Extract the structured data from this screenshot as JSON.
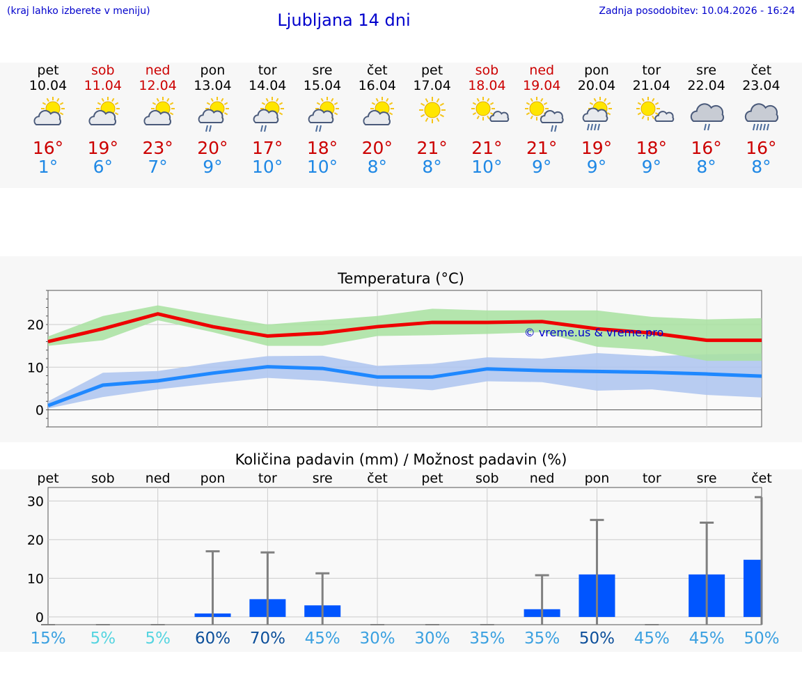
{
  "header": {
    "note": "(kraj lahko izberete v meniju)",
    "title": "Ljubljana 14 dni",
    "updated": "Zadnja posodobitev: 10.04.2026 - 16:24"
  },
  "days": [
    {
      "name": "pet",
      "date": "10.04",
      "weekend": false,
      "icon": "sun-cloud-icon",
      "tmax": "16°",
      "tmin": "1°"
    },
    {
      "name": "sob",
      "date": "11.04",
      "weekend": true,
      "icon": "sun-cloud-icon",
      "tmax": "19°",
      "tmin": "6°"
    },
    {
      "name": "ned",
      "date": "12.04",
      "weekend": true,
      "icon": "sun-cloud-icon",
      "tmax": "23°",
      "tmin": "7°"
    },
    {
      "name": "pon",
      "date": "13.04",
      "weekend": false,
      "icon": "sun-cloud-rain-icon",
      "tmax": "20°",
      "tmin": "9°"
    },
    {
      "name": "tor",
      "date": "14.04",
      "weekend": false,
      "icon": "sun-cloud-rain-icon",
      "tmax": "17°",
      "tmin": "10°"
    },
    {
      "name": "sre",
      "date": "15.04",
      "weekend": false,
      "icon": "sun-cloud-rain-icon",
      "tmax": "18°",
      "tmin": "10°"
    },
    {
      "name": "čet",
      "date": "16.04",
      "weekend": false,
      "icon": "sun-cloud-icon",
      "tmax": "20°",
      "tmin": "8°"
    },
    {
      "name": "pet",
      "date": "17.04",
      "weekend": false,
      "icon": "sun-icon",
      "tmax": "21°",
      "tmin": "8°"
    },
    {
      "name": "sob",
      "date": "18.04",
      "weekend": true,
      "icon": "sun-small-cloud-icon",
      "tmax": "21°",
      "tmin": "10°"
    },
    {
      "name": "ned",
      "date": "19.04",
      "weekend": true,
      "icon": "sun-cloud-light-rain-icon",
      "tmax": "21°",
      "tmin": "9°"
    },
    {
      "name": "pon",
      "date": "20.04",
      "weekend": false,
      "icon": "sun-cloud-heavy-rain-icon",
      "tmax": "19°",
      "tmin": "9°"
    },
    {
      "name": "tor",
      "date": "21.04",
      "weekend": false,
      "icon": "sun-small-cloud-icon",
      "tmax": "18°",
      "tmin": "9°"
    },
    {
      "name": "sre",
      "date": "22.04",
      "weekend": false,
      "icon": "cloud-rain-icon",
      "tmax": "16°",
      "tmin": "8°"
    },
    {
      "name": "čet",
      "date": "23.04",
      "weekend": false,
      "icon": "cloud-heavy-rain-icon",
      "tmax": "16°",
      "tmin": "8°"
    }
  ],
  "colors": {
    "max_line": "#ee0000",
    "max_band": "#a8e2a0",
    "min_line": "#1f88ff",
    "min_band": "#b0c6f0",
    "bar": "#0055ff",
    "errbar": "#808080",
    "weekend": "#cc0000",
    "tmin_text": "#1f88e5"
  },
  "chart_data": [
    {
      "type": "line",
      "title": "Temperatura (°C)",
      "watermark": "© vreme.us & vreme.pro",
      "x": [
        0,
        1,
        2,
        3,
        4,
        5,
        6,
        7,
        8,
        9,
        10,
        11,
        12,
        13
      ],
      "ylim": [
        -4,
        28
      ],
      "yticks": [
        0,
        10,
        20
      ],
      "grid": true,
      "series": [
        {
          "key": "max",
          "values": [
            16,
            19,
            22.5,
            19.5,
            17.3,
            18,
            19.5,
            20.5,
            20.5,
            20.7,
            19,
            18,
            16.3,
            16.3
          ],
          "band_low": [
            15,
            16.3,
            21,
            18.2,
            15,
            15,
            17.3,
            17.5,
            17.8,
            18.2,
            14.8,
            14,
            11.5,
            11.5
          ],
          "band_high": [
            17.2,
            22,
            24.5,
            22.2,
            20,
            21,
            22,
            23.7,
            23.3,
            23.3,
            23.3,
            21.8,
            21.2,
            21.5
          ]
        },
        {
          "key": "min",
          "values": [
            1,
            5.8,
            6.8,
            8.6,
            10.1,
            9.7,
            7.7,
            7.7,
            9.6,
            9.2,
            9,
            8.8,
            8.4,
            7.9
          ],
          "band_low": [
            0.3,
            3,
            4.8,
            6.2,
            7.5,
            6.8,
            5.5,
            4.6,
            6.7,
            6.5,
            4.5,
            4.8,
            3.5,
            2.9
          ],
          "band_high": [
            2,
            8.7,
            9.1,
            11,
            12.6,
            12.7,
            10.3,
            10.8,
            12.3,
            12,
            13.3,
            12.6,
            13,
            13.2
          ]
        }
      ]
    },
    {
      "type": "bar",
      "title": "Količina padavin (mm) / Možnost padavin (%)",
      "categories": [
        "pet",
        "sob",
        "ned",
        "pon",
        "tor",
        "sre",
        "čet",
        "pet",
        "sob",
        "ned",
        "pon",
        "tor",
        "sre",
        "čet"
      ],
      "values": [
        0,
        0,
        0,
        0.9,
        4.6,
        3,
        0,
        0,
        0,
        2,
        11,
        0,
        11,
        14.8
      ],
      "err_high": [
        0,
        0,
        0,
        17,
        16.7,
        11.3,
        0,
        0,
        0,
        10.8,
        25.1,
        0,
        24.4,
        31
      ],
      "chance": [
        "15%",
        "5%",
        "5%",
        "60%",
        "70%",
        "45%",
        "30%",
        "30%",
        "35%",
        "35%",
        "50%",
        "45%",
        "45%",
        "50%"
      ],
      "chance_colors": [
        "#3aa0e0",
        "#55d4e0",
        "#55d4e0",
        "#0c4f9a",
        "#0c4f9a",
        "#3aa0e0",
        "#3aa0e0",
        "#3aa0e0",
        "#3aa0e0",
        "#3aa0e0",
        "#0c4f9a",
        "#3aa0e0",
        "#3aa0e0",
        "#3aa0e0"
      ],
      "ylim": [
        -2,
        33.5
      ],
      "yticks": [
        0,
        10,
        20,
        30
      ],
      "grid": true
    }
  ]
}
